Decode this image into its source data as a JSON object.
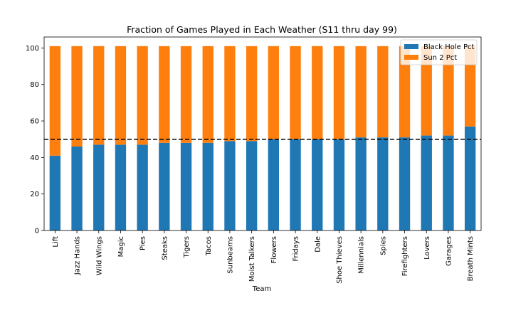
{
  "chart_data": {
    "type": "bar",
    "stacked": true,
    "title": "Fraction of Games Played in Each Weather (S11 thru day 99)",
    "xlabel": "Team",
    "ylabel": "",
    "ylim": [
      0,
      106
    ],
    "yticks": [
      0,
      20,
      40,
      60,
      80,
      100
    ],
    "categories": [
      "Lift",
      "Jazz Hands",
      "Wild Wings",
      "Magic",
      "Pies",
      "Steaks",
      "Tigers",
      "Tacos",
      "Sunbeams",
      "Moist Talkers",
      "Flowers",
      "Fridays",
      "Dale",
      "Shoe Thieves",
      "Millennials",
      "Spies",
      "Firefighters",
      "Lovers",
      "Garages",
      "Breath Mints"
    ],
    "series": [
      {
        "name": "Black Hole Pct",
        "color": "#1f77b4",
        "values": [
          41,
          46,
          47,
          47,
          47,
          48,
          48,
          48,
          49,
          49,
          50,
          50,
          50,
          50,
          51,
          51,
          51,
          52,
          52,
          57
        ]
      },
      {
        "name": "Sun 2 Pct",
        "color": "#ff7f0e",
        "values": [
          60,
          55,
          54,
          54,
          54,
          53,
          53,
          53,
          52,
          52,
          51,
          51,
          51,
          51,
          50,
          50,
          50,
          49,
          49,
          44
        ]
      }
    ],
    "reference_line": {
      "y": 50,
      "style": "dashed",
      "color": "#000000"
    },
    "legend_position": "top-right",
    "grid": false
  }
}
